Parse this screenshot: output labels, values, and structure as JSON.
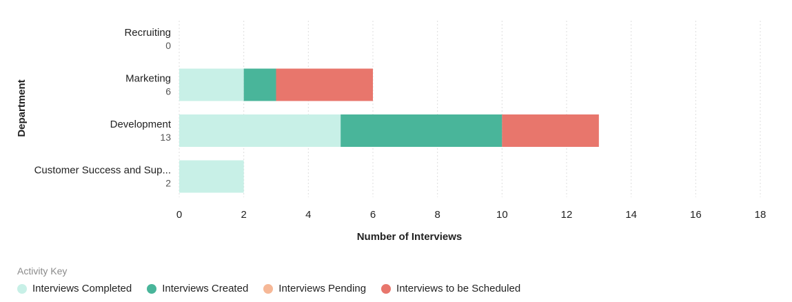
{
  "chart_data": {
    "type": "bar",
    "orientation": "horizontal",
    "stacked": true,
    "categories": [
      "Recruiting",
      "Marketing",
      "Development",
      "Customer Success and Sup..."
    ],
    "totals": [
      "0",
      "6",
      "13",
      "2"
    ],
    "series": [
      {
        "name": "Interviews Completed",
        "color": "#c8f0e7",
        "values": [
          0,
          2,
          5,
          2
        ]
      },
      {
        "name": "Interviews Created",
        "color": "#49b59a",
        "values": [
          0,
          1,
          5,
          0
        ]
      },
      {
        "name": "Interviews Pending",
        "color": "#f6b897",
        "values": [
          0,
          0,
          0,
          0
        ]
      },
      {
        "name": "Interviews to be Scheduled",
        "color": "#e8766c",
        "values": [
          0,
          3,
          3,
          0
        ]
      }
    ],
    "xlabel": "Number of Interviews",
    "ylabel": "Department",
    "xlim": [
      0,
      18
    ],
    "xticks": [
      0,
      2,
      4,
      6,
      8,
      10,
      12,
      14,
      16,
      18
    ],
    "grid": "vertical dashed",
    "legend": {
      "title": "Activity Key",
      "placement": "bottom-left"
    }
  }
}
